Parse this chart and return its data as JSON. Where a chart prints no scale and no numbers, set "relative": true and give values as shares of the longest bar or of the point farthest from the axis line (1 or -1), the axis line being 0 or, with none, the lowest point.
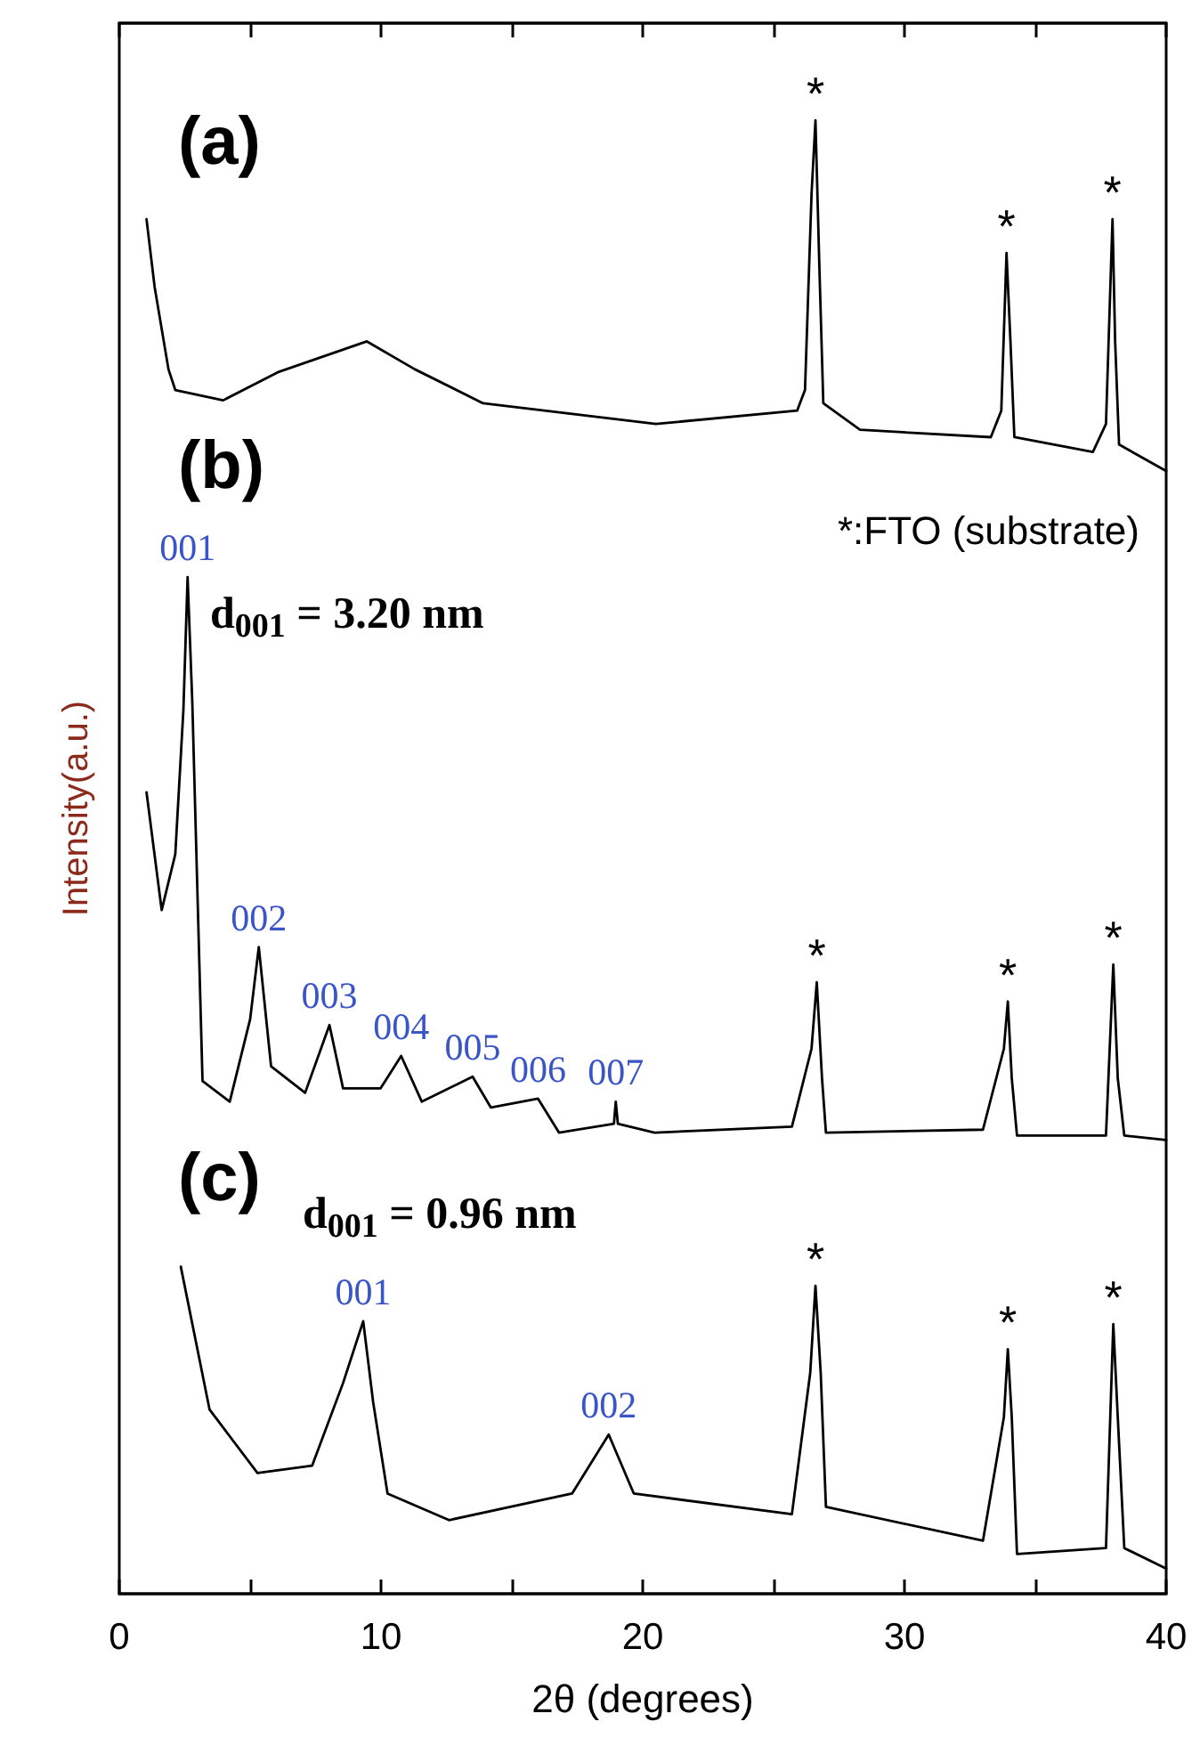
{
  "chart_data": {
    "type": "line",
    "relative": true,
    "xlabel": "2θ (degrees)",
    "ylabel": "Intensity(a.u.)",
    "xlim": [
      0,
      40
    ],
    "xticks": [
      0,
      {
        "value": 5,
        "label": null
      },
      10,
      {
        "value": 15,
        "label": null
      },
      20,
      {
        "value": 25,
        "label": null
      },
      30,
      {
        "value": 35,
        "label": null
      },
      40
    ],
    "tick_labels": "x",
    "grid": false,
    "marker": "none",
    "line_style": "solid",
    "series": [
      {
        "color": "#000000",
        "x": [
          1.04,
          1.35,
          1.88,
          2.14,
          3.97,
          6.05,
          9.46,
          11.3,
          13.9,
          20.5,
          25.9,
          26.2,
          26.45,
          26.6,
          26.75,
          26.9,
          28.3,
          33.3,
          33.7,
          33.9,
          34.05,
          34.2,
          37.2,
          37.7,
          37.95,
          38.05,
          38.2,
          40
        ],
        "values": [
          0.933,
          0.887,
          0.831,
          0.817,
          0.81,
          0.829,
          0.85,
          0.831,
          0.808,
          0.794,
          0.803,
          0.817,
          0.95,
          1.0,
          0.9,
          0.808,
          0.79,
          0.785,
          0.803,
          0.91,
          0.85,
          0.785,
          0.775,
          0.794,
          0.933,
          0.85,
          0.78,
          0.762
        ]
      },
      {
        "color": "#000000",
        "x": [
          1.04,
          1.62,
          2.14,
          2.45,
          2.61,
          2.79,
          3.18,
          4.22,
          5.0,
          5.33,
          5.8,
          7.1,
          8.03,
          8.55,
          9.98,
          10.77,
          11.56,
          13.5,
          14.2,
          16.0,
          16.8,
          18.9,
          18.97,
          19.05,
          20.45,
          25.7,
          26.45,
          26.65,
          26.85,
          27.0,
          33.0,
          33.8,
          33.95,
          34.1,
          34.3,
          37.7,
          37.98,
          38.15,
          38.4,
          40
        ],
        "values": [
          0.544,
          0.464,
          0.502,
          0.6,
          0.69,
          0.605,
          0.348,
          0.334,
          0.39,
          0.439,
          0.358,
          0.34,
          0.386,
          0.343,
          0.343,
          0.365,
          0.334,
          0.351,
          0.33,
          0.336,
          0.313,
          0.319,
          0.334,
          0.319,
          0.313,
          0.317,
          0.37,
          0.415,
          0.35,
          0.313,
          0.315,
          0.37,
          0.402,
          0.35,
          0.311,
          0.311,
          0.427,
          0.35,
          0.311,
          0.308
        ]
      },
      {
        "color": "#000000",
        "x": [
          2.35,
          3.45,
          5.28,
          7.37,
          8.55,
          9.32,
          9.7,
          10.25,
          12.6,
          17.3,
          18.7,
          19.66,
          25.7,
          26.4,
          26.6,
          26.8,
          27.0,
          33.0,
          33.8,
          33.95,
          34.1,
          34.3,
          37.7,
          37.98,
          38.15,
          38.4,
          40
        ],
        "values": [
          0.222,
          0.125,
          0.082,
          0.087,
          0.143,
          0.185,
          0.13,
          0.068,
          0.05,
          0.068,
          0.108,
          0.068,
          0.054,
          0.15,
          0.209,
          0.15,
          0.059,
          0.036,
          0.12,
          0.166,
          0.12,
          0.027,
          0.031,
          0.183,
          0.12,
          0.031,
          0.017
        ]
      }
    ],
    "annotations": [
      "(a)",
      "(b)",
      "(c)",
      "*:FTO (substrate)",
      "d$_{001}$ = 3.20 nm",
      "d$_{001}$ = 0.96 nm",
      {
        "text": "*",
        "x": 26.6,
        "y": 1.0
      },
      {
        "text": "*",
        "x": 33.9,
        "y": 0.91
      },
      {
        "text": "*",
        "x": 37.95,
        "y": 0.933
      },
      {
        "text": "001",
        "x": 2.61,
        "y": 0.69
      },
      {
        "text": "002",
        "x": 5.33,
        "y": 0.439
      },
      {
        "text": "003",
        "x": 8.03,
        "y": 0.386
      },
      {
        "text": "004",
        "x": 10.77,
        "y": 0.365
      },
      {
        "text": "005",
        "x": 13.5,
        "y": 0.351
      },
      {
        "text": "006",
        "x": 16.0,
        "y": 0.336
      },
      {
        "text": "007",
        "x": 18.97,
        "y": 0.334
      },
      {
        "text": "*",
        "x": 26.65,
        "y": 0.415
      },
      {
        "text": "*",
        "x": 33.95,
        "y": 0.402
      },
      {
        "text": "*",
        "x": 37.98,
        "y": 0.427
      },
      {
        "text": "001",
        "x": 9.32,
        "y": 0.185
      },
      {
        "text": "002",
        "x": 18.7,
        "y": 0.108
      },
      {
        "text": "*",
        "x": 26.6,
        "y": 0.209
      },
      {
        "text": "*",
        "x": 33.95,
        "y": 0.166
      },
      {
        "text": "*",
        "x": 37.98,
        "y": 0.183
      }
    ]
  }
}
